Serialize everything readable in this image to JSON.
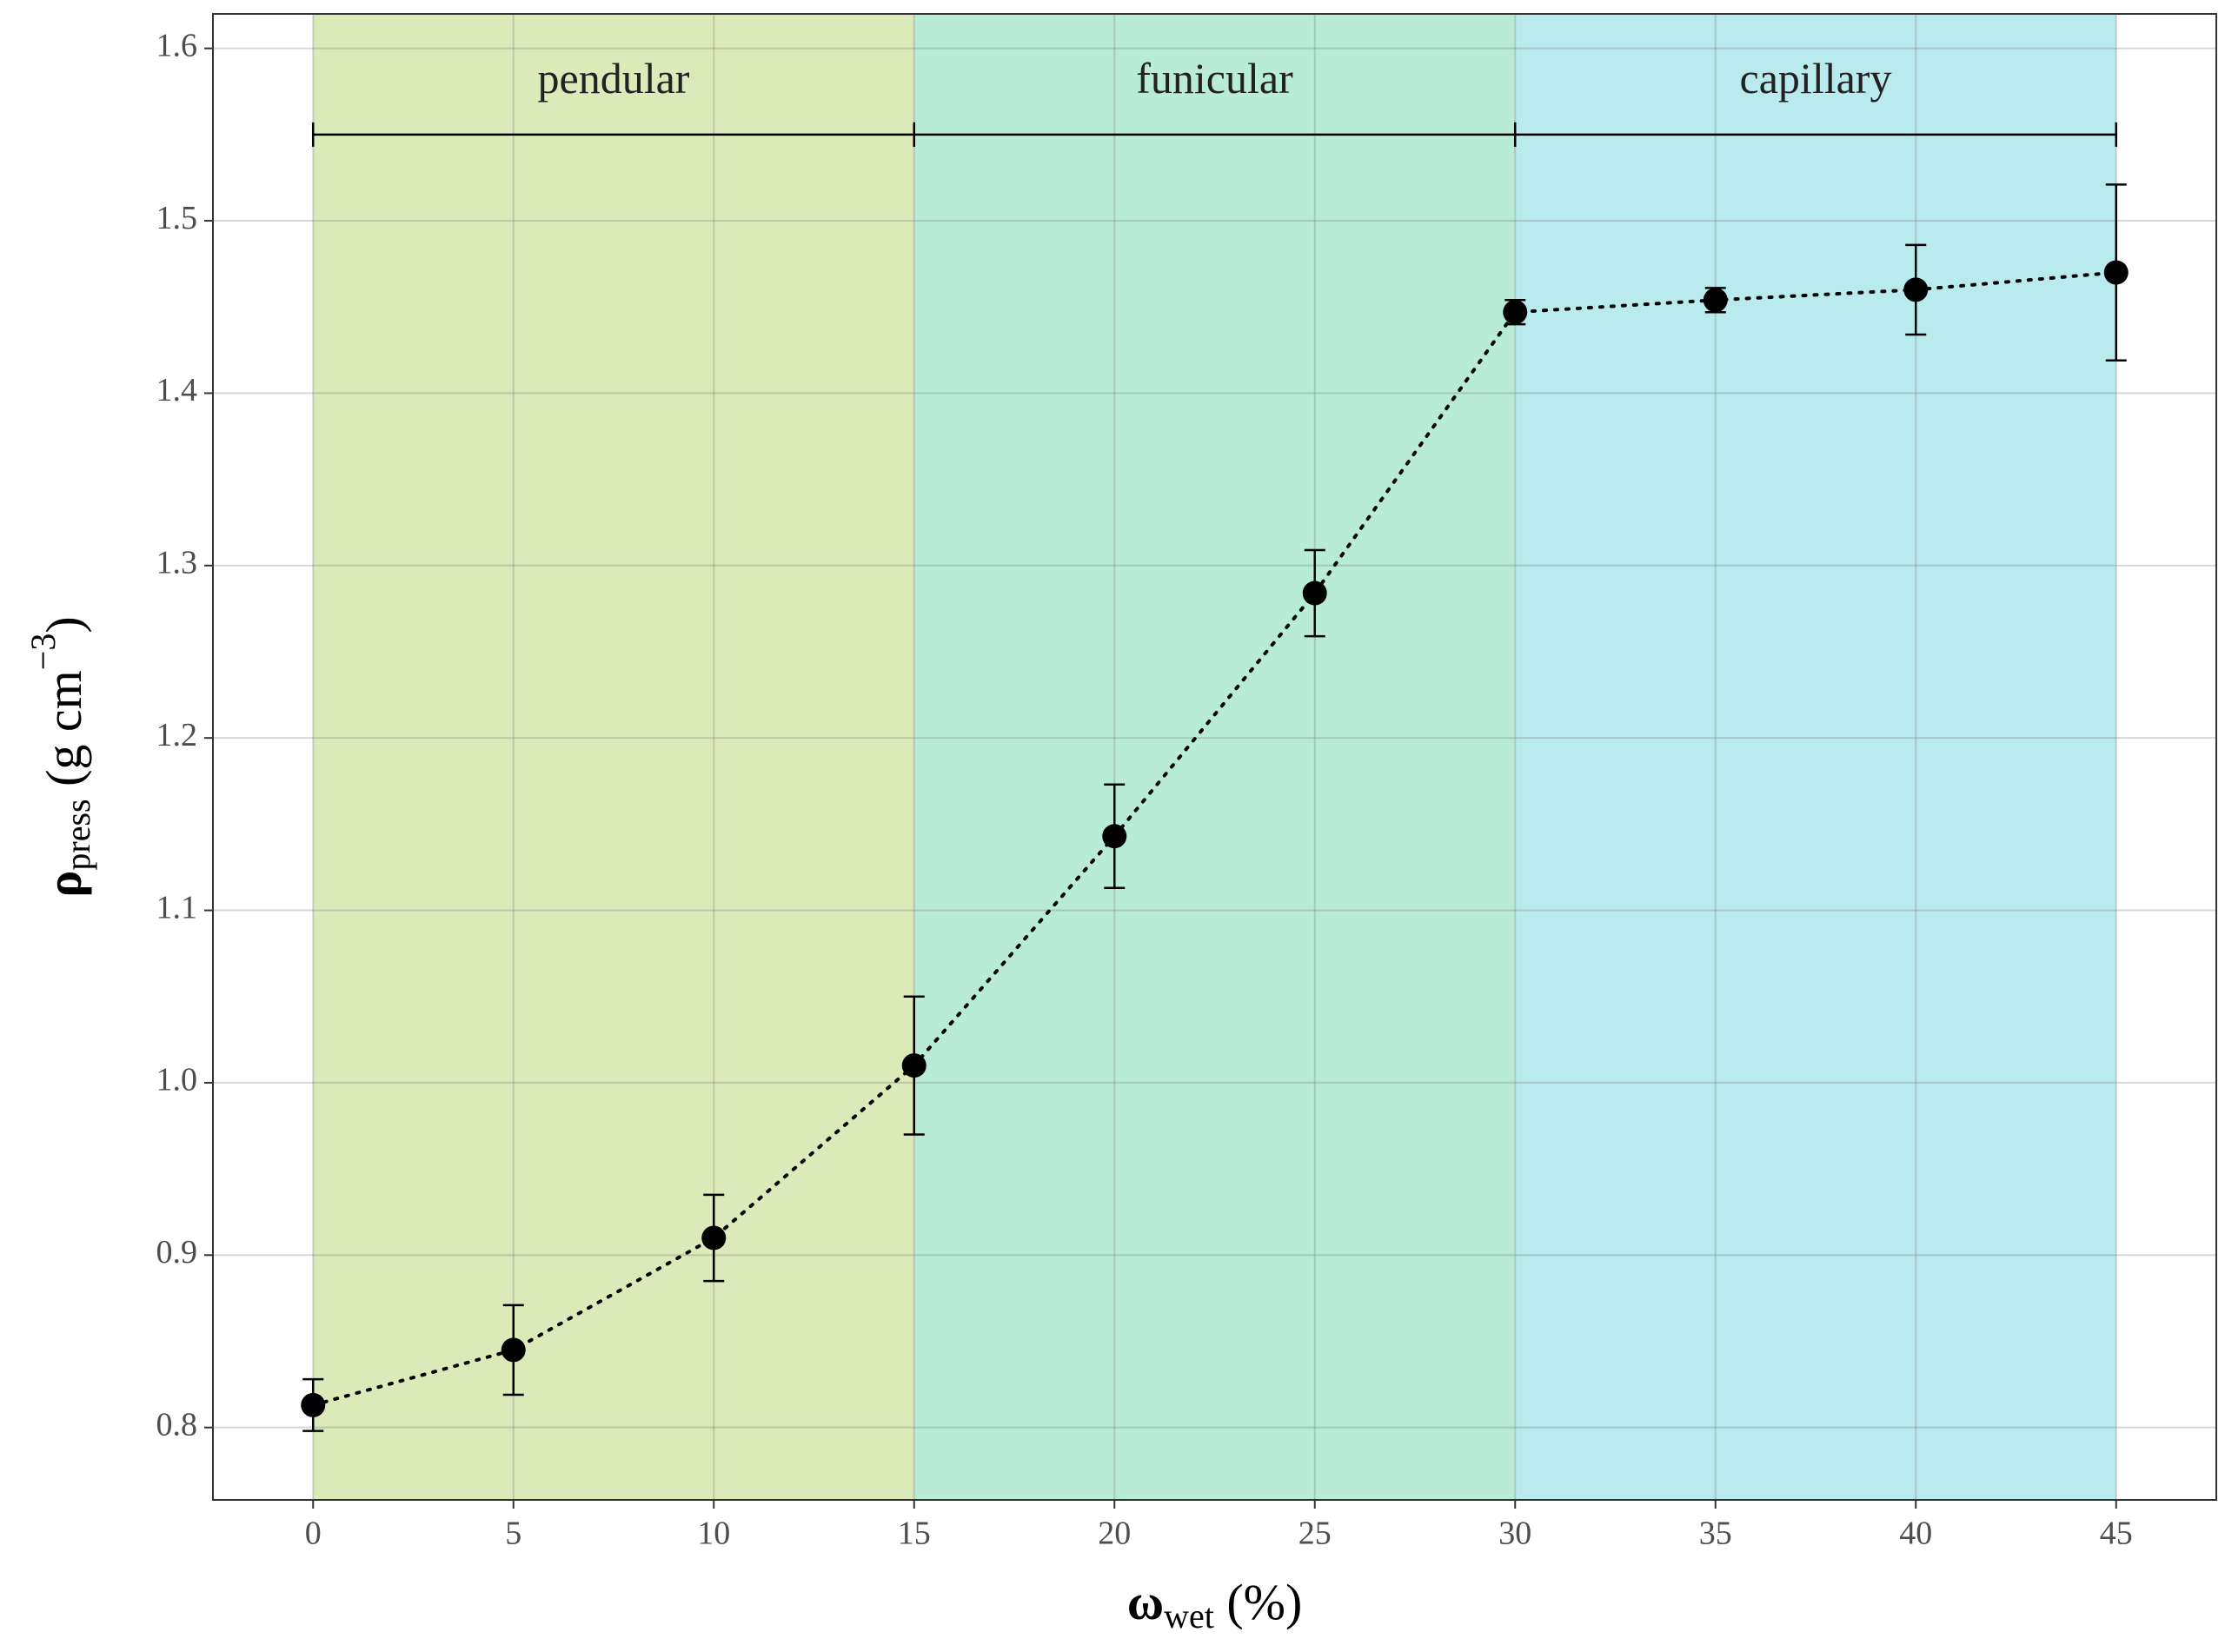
{
  "chart_data": {
    "type": "line",
    "xlabel": {
      "symbol": "ω",
      "subscript": "wet",
      "rest": " (%)"
    },
    "ylabel": {
      "symbol": "ρ",
      "subscript": "press",
      "rest": " (g cm",
      "superscript": "−3",
      "close": ")"
    },
    "regions": [
      {
        "name": "pendular",
        "start": 0,
        "end": 15,
        "color": "#dce9b9"
      },
      {
        "name": "funicular",
        "start": 15,
        "end": 30,
        "color": "#b9ecd6"
      },
      {
        "name": "capillary",
        "start": 30,
        "end": 45,
        "color": "#b9eaed"
      }
    ],
    "bracket_y": 1.55,
    "region_label_y": 1.58,
    "x": [
      0,
      5,
      10,
      15,
      20,
      25,
      30,
      35,
      40,
      45
    ],
    "series": [
      {
        "color": "#000000",
        "values": [
          0.813,
          0.845,
          0.91,
          1.01,
          1.143,
          1.284,
          1.447,
          1.454,
          1.46,
          1.47
        ],
        "errors": [
          0.015,
          0.026,
          0.025,
          0.04,
          0.03,
          0.025,
          0.007,
          0.007,
          0.026,
          0.051
        ]
      }
    ],
    "xlim": [
      -2.5,
      47.5
    ],
    "xticks": [
      0,
      5,
      10,
      15,
      20,
      25,
      30,
      35,
      40,
      45
    ],
    "ylim": [
      0.758,
      1.62
    ],
    "yticks": [
      {
        "value": 0.8,
        "label": "0.8"
      },
      {
        "value": 0.9,
        "label": "0.9"
      },
      {
        "value": 1.0,
        "label": "1.0"
      },
      {
        "value": 1.1,
        "label": "1.1"
      },
      {
        "value": 1.2,
        "label": "1.2"
      },
      {
        "value": 1.3,
        "label": "1.3"
      },
      {
        "value": 1.4,
        "label": "1.4"
      },
      {
        "value": 1.5,
        "label": "1.5"
      },
      {
        "value": 1.6,
        "label": "1.6"
      }
    ],
    "grid": true
  }
}
